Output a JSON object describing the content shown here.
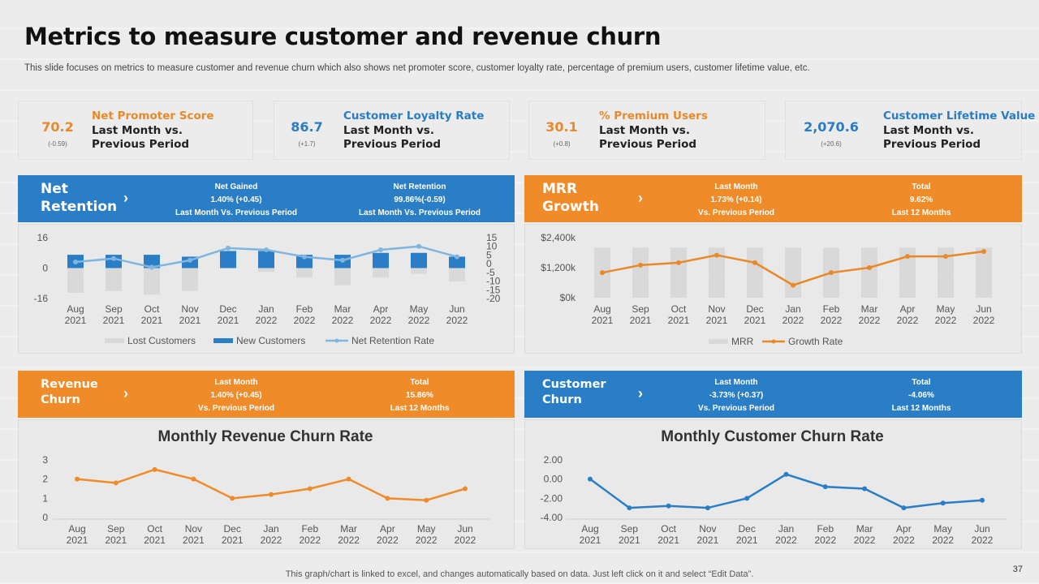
{
  "title": "Metrics to measure customer and revenue churn",
  "subtitle": "This slide focuses on metrics to measure customer and revenue churn which also shows net promoter score, customer loyalty rate, percentage of premium users, customer lifetime value, etc.",
  "kpis": [
    {
      "value": "70.2",
      "change": "(-0.59)",
      "name": "Net Promoter Score",
      "line1": "Last Month vs.",
      "line2": "Previous Period",
      "color": "#e8892a"
    },
    {
      "value": "86.7",
      "change": "(+1.7)",
      "name": "Customer Loyalty Rate",
      "line1": "Last Month vs.",
      "line2": "Previous Period",
      "color": "#2a7cc4"
    },
    {
      "value": "30.1",
      "change": "(+0.8)",
      "name": "% Premium Users",
      "line1": "Last Month vs.",
      "line2": "Previous Period",
      "color": "#e8892a"
    },
    {
      "value": "2,070.6",
      "change": "(+20.6)",
      "name": "Customer Lifetime Value",
      "line1": "Last Month vs.",
      "line2": "Previous Period",
      "color": "#2a7cc4"
    }
  ],
  "bands": {
    "net_retention": {
      "name1": "Net",
      "name2": "Retention",
      "s1": {
        "title": "Net Gained",
        "value": "1.40% (+0.45)",
        "note": "Last Month Vs. Previous Period"
      },
      "s2": {
        "title": "Net Retention",
        "value": "99.86%(-0.59)",
        "note": "Last Month Vs. Previous Period"
      }
    },
    "mrr_growth": {
      "name1": "MRR",
      "name2": "Growth",
      "s1": {
        "title": "Last Month",
        "value": "1.73% (+0.14)",
        "note": "Vs. Previous Period"
      },
      "s2": {
        "title": "Total",
        "value": "9.62%",
        "note": "Last 12 Months"
      }
    },
    "revenue_churn": {
      "name1": "Revenue",
      "name2": "Churn",
      "s1": {
        "title": "Last Month",
        "value": "1.40% (+0.45)",
        "note": "Vs. Previous Period"
      },
      "s2": {
        "title": "Total",
        "value": "15.86%",
        "note": "Last 12 Months"
      }
    },
    "customer_churn": {
      "name1": "Customer",
      "name2": "Churn",
      "s1": {
        "title": "Last Month",
        "value": "-3.73% (+0.37)",
        "note": "Vs. Previous Period"
      },
      "s2": {
        "title": "Total",
        "value": "-4.06%",
        "note": "Last 12 Months"
      }
    }
  },
  "chevron": "›",
  "chart_data": [
    {
      "id": "net_retention",
      "type": "bar",
      "categories": [
        [
          "Aug",
          "2021"
        ],
        [
          "Sep",
          "2021"
        ],
        [
          "Oct",
          "2021"
        ],
        [
          "Nov",
          "2021"
        ],
        [
          "Dec",
          "2021"
        ],
        [
          "Jan",
          "2022"
        ],
        [
          "Feb",
          "2022"
        ],
        [
          "Mar",
          "2022"
        ],
        [
          "Apr",
          "2022"
        ],
        [
          "May",
          "2022"
        ],
        [
          "Jun",
          "2022"
        ]
      ],
      "series": [
        {
          "name": "Lost Customers",
          "values": [
            -13,
            -12,
            -14,
            -12,
            0,
            -2,
            -5,
            -9,
            -5,
            -3,
            -7
          ],
          "color": "#d9d9d9"
        },
        {
          "name": "New Customers",
          "values": [
            7,
            7,
            7,
            6,
            9,
            9,
            7,
            7,
            8,
            8,
            6
          ],
          "color": "#2a7ec6"
        },
        {
          "name": "Net Retention Rate",
          "values": [
            1,
            3,
            -2,
            2,
            9,
            8,
            4,
            2,
            8,
            10,
            4
          ],
          "color": "#7fb6e0",
          "axis": "right"
        }
      ],
      "yticks_left": [
        "16",
        "0",
        "-16"
      ],
      "ylim_left": [
        -16,
        16
      ],
      "yticks_right": [
        "15",
        "10",
        "5",
        "0",
        "-5",
        "-10",
        "-15",
        "-20"
      ],
      "ylim_right": [
        -20,
        15
      ]
    },
    {
      "id": "mrr_growth",
      "type": "bar",
      "categories": [
        [
          "Aug",
          "2021"
        ],
        [
          "Sep",
          "2021"
        ],
        [
          "Oct",
          "2021"
        ],
        [
          "Nov",
          "2021"
        ],
        [
          "Dec",
          "2021"
        ],
        [
          "Jan",
          "2022"
        ],
        [
          "Feb",
          "2022"
        ],
        [
          "Mar",
          "2022"
        ],
        [
          "Apr",
          "2022"
        ],
        [
          "May",
          "2022"
        ],
        [
          "Jun",
          "2022"
        ]
      ],
      "series": [
        {
          "name": "MRR",
          "values": [
            2000,
            2000,
            2000,
            2000,
            2000,
            2000,
            2000,
            2000,
            2000,
            2000,
            2000
          ],
          "color": "#d9d9d9"
        },
        {
          "name": "Growth Rate",
          "values": [
            1000,
            1300,
            1400,
            1700,
            1400,
            500,
            1000,
            1200,
            1650,
            1650,
            1850
          ],
          "color": "#e8892a"
        }
      ],
      "yticks_left": [
        "$2,400k",
        "$1,200k",
        "$0k"
      ],
      "ylim_left": [
        0,
        2400
      ]
    },
    {
      "id": "revenue_churn",
      "type": "line",
      "title": "Monthly Revenue Churn Rate",
      "categories": [
        [
          "Aug",
          "2021"
        ],
        [
          "Sep",
          "2021"
        ],
        [
          "Oct",
          "2021"
        ],
        [
          "Nov",
          "2021"
        ],
        [
          "Dec",
          "2021"
        ],
        [
          "Jan",
          "2022"
        ],
        [
          "Feb",
          "2022"
        ],
        [
          "Mar",
          "2022"
        ],
        [
          "Apr",
          "2022"
        ],
        [
          "May",
          "2022"
        ],
        [
          "Jun",
          "2022"
        ]
      ],
      "series": [
        {
          "values": [
            2.0,
            1.8,
            2.5,
            2.0,
            1.0,
            1.2,
            1.5,
            2.0,
            1.0,
            0.9,
            1.5
          ],
          "color": "#ef8b28"
        }
      ],
      "yticks_left": [
        "3",
        "2",
        "1",
        "0"
      ],
      "ylim_left": [
        0,
        3
      ]
    },
    {
      "id": "customer_churn",
      "type": "line",
      "title": "Monthly Customer Churn Rate",
      "categories": [
        [
          "Aug",
          "2021"
        ],
        [
          "Sep",
          "2021"
        ],
        [
          "Oct",
          "2021"
        ],
        [
          "Nov",
          "2021"
        ],
        [
          "Dec",
          "2021"
        ],
        [
          "Jan",
          "2022"
        ],
        [
          "Feb",
          "2022"
        ],
        [
          "Mar",
          "2022"
        ],
        [
          "Apr",
          "2022"
        ],
        [
          "May",
          "2022"
        ],
        [
          "Jun",
          "2022"
        ]
      ],
      "series": [
        {
          "values": [
            0.0,
            -3.0,
            -2.8,
            -3.0,
            -2.0,
            0.5,
            -0.8,
            -1.0,
            -3.0,
            -2.5,
            -2.2
          ],
          "color": "#2a7ec6"
        }
      ],
      "yticks_left": [
        "2.00",
        "0.00",
        "-2.00",
        "-4.00"
      ],
      "ylim_left": [
        -4,
        2
      ]
    }
  ],
  "footnote": "This graph/chart is linked to excel,  and changes automatically based on data. Just left click on it and select “Edit Data”.",
  "page_number": "37"
}
